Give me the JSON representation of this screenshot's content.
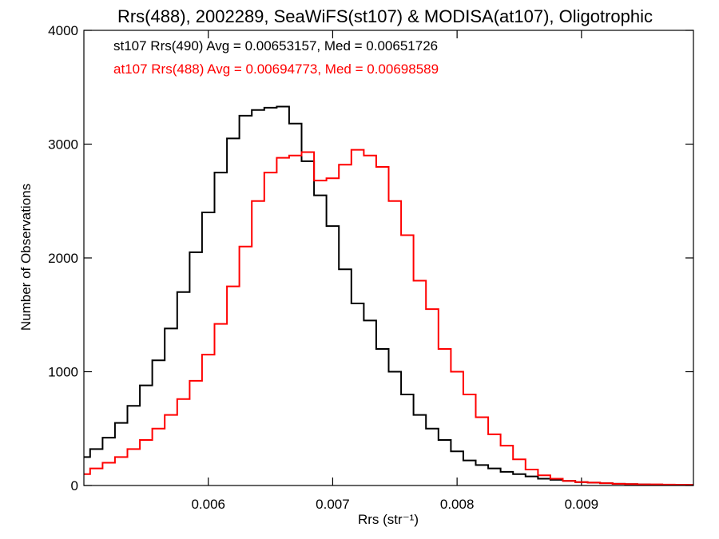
{
  "chart_data": {
    "type": "line",
    "title": "Rrs(488), 2002289, SeaWiFS(st107) & MODISA(at107), Oligotrophic",
    "xlabel": "Rrs (str⁻¹)",
    "ylabel": "Number of Observations",
    "xlim": [
      0.005,
      0.0099
    ],
    "ylim": [
      0,
      4000
    ],
    "xticks": [
      0.006,
      0.007,
      0.008,
      0.009
    ],
    "xtick_labels": [
      "0.006",
      "0.007",
      "0.008",
      "0.009"
    ],
    "yticks": [
      0,
      1000,
      2000,
      3000,
      4000
    ],
    "ytick_labels": [
      "0",
      "1000",
      "2000",
      "3000",
      "4000"
    ],
    "step": true,
    "grid": false,
    "annotations": [
      {
        "text": "st107 Rrs(490) Avg = 0.00653157, Med = 0.00651726",
        "color": "#000000"
      },
      {
        "text": "at107 Rrs(488) Avg = 0.00694773, Med = 0.00698589",
        "color": "#ff0000"
      }
    ],
    "series": [
      {
        "color": "#000000",
        "x": [
          0.005,
          0.0051,
          0.0052,
          0.0053,
          0.0054,
          0.0055,
          0.0056,
          0.0057,
          0.0058,
          0.0059,
          0.006,
          0.0061,
          0.0062,
          0.0063,
          0.0064,
          0.0065,
          0.0066,
          0.0067,
          0.0068,
          0.0069,
          0.007,
          0.0071,
          0.0072,
          0.0073,
          0.0074,
          0.0075,
          0.0076,
          0.0077,
          0.0078,
          0.0079,
          0.008,
          0.0081,
          0.0082,
          0.0083,
          0.0084,
          0.0085,
          0.0086,
          0.0087,
          0.0088,
          0.0089,
          0.009,
          0.0091,
          0.0092,
          0.0093,
          0.0094,
          0.0095,
          0.0096,
          0.0097,
          0.0098,
          0.0099
        ],
        "values": [
          250,
          320,
          420,
          550,
          700,
          880,
          1100,
          1380,
          1700,
          2050,
          2400,
          2750,
          3050,
          3250,
          3300,
          3320,
          3330,
          3180,
          2850,
          2550,
          2280,
          1900,
          1600,
          1450,
          1200,
          1000,
          800,
          620,
          500,
          400,
          300,
          220,
          180,
          150,
          120,
          100,
          80,
          60,
          50,
          40,
          30,
          25,
          20,
          15,
          12,
          10,
          8,
          6,
          5,
          5
        ]
      },
      {
        "color": "#ff0000",
        "x": [
          0.005,
          0.0051,
          0.0052,
          0.0053,
          0.0054,
          0.0055,
          0.0056,
          0.0057,
          0.0058,
          0.0059,
          0.006,
          0.0061,
          0.0062,
          0.0063,
          0.0064,
          0.0065,
          0.0066,
          0.0067,
          0.0068,
          0.0069,
          0.007,
          0.0071,
          0.0072,
          0.0073,
          0.0074,
          0.0075,
          0.0076,
          0.0077,
          0.0078,
          0.0079,
          0.008,
          0.0081,
          0.0082,
          0.0083,
          0.0084,
          0.0085,
          0.0086,
          0.0087,
          0.0088,
          0.0089,
          0.009,
          0.0091,
          0.0092,
          0.0093,
          0.0094,
          0.0095,
          0.0096,
          0.0097,
          0.0098,
          0.0099
        ],
        "values": [
          100,
          150,
          200,
          250,
          320,
          400,
          500,
          620,
          760,
          920,
          1150,
          1420,
          1750,
          2100,
          2500,
          2750,
          2880,
          2900,
          2930,
          2680,
          2700,
          2820,
          2950,
          2900,
          2800,
          2500,
          2200,
          1800,
          1550,
          1200,
          1000,
          800,
          600,
          450,
          350,
          230,
          140,
          90,
          60,
          40,
          30,
          25,
          20,
          15,
          12,
          10,
          10,
          8,
          6,
          5
        ]
      }
    ]
  }
}
